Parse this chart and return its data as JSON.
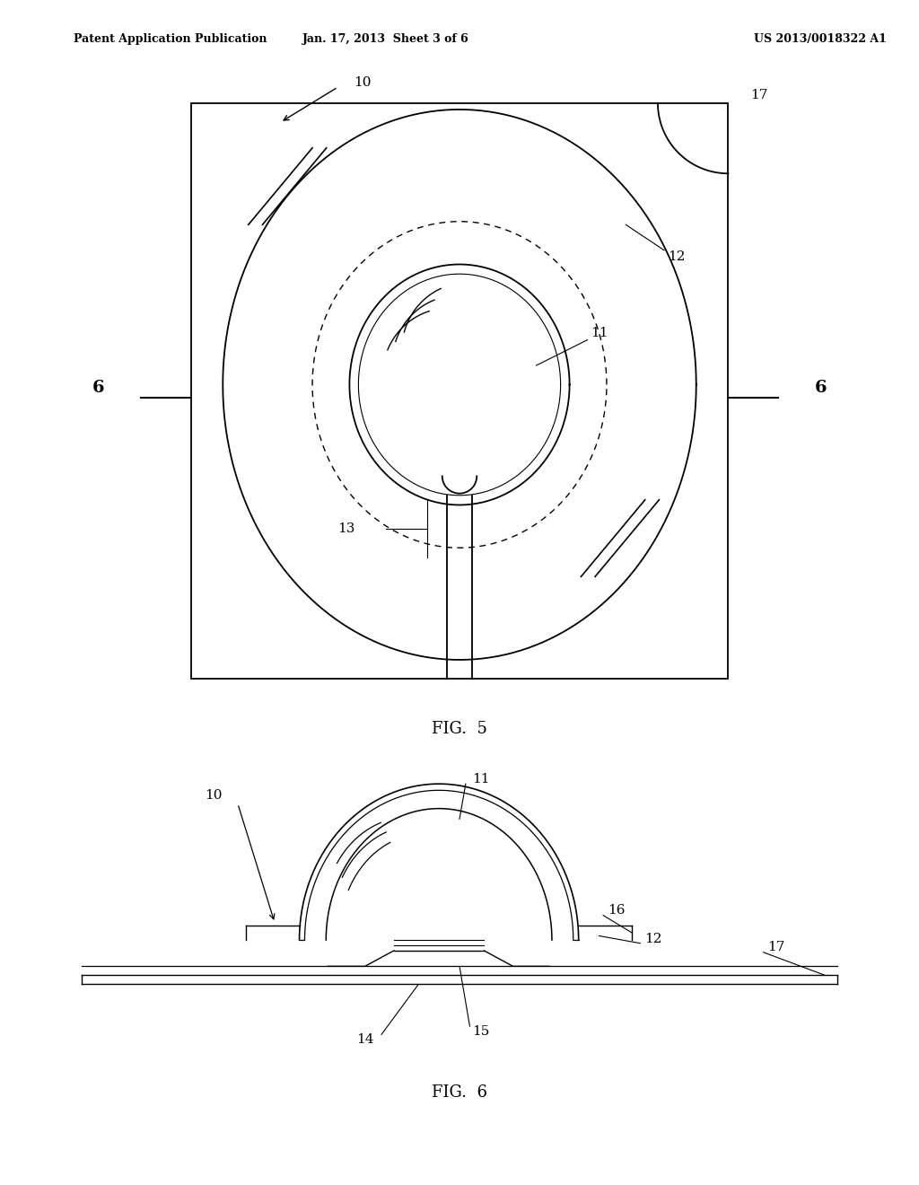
{
  "header_left": "Patent Application Publication",
  "header_mid": "Jan. 17, 2013  Sheet 3 of 6",
  "header_right": "US 2013/0018322 A1",
  "fig5_label": "FIG.  5",
  "fig6_label": "FIG.  6",
  "bg_color": "#ffffff",
  "line_color": "#000000"
}
